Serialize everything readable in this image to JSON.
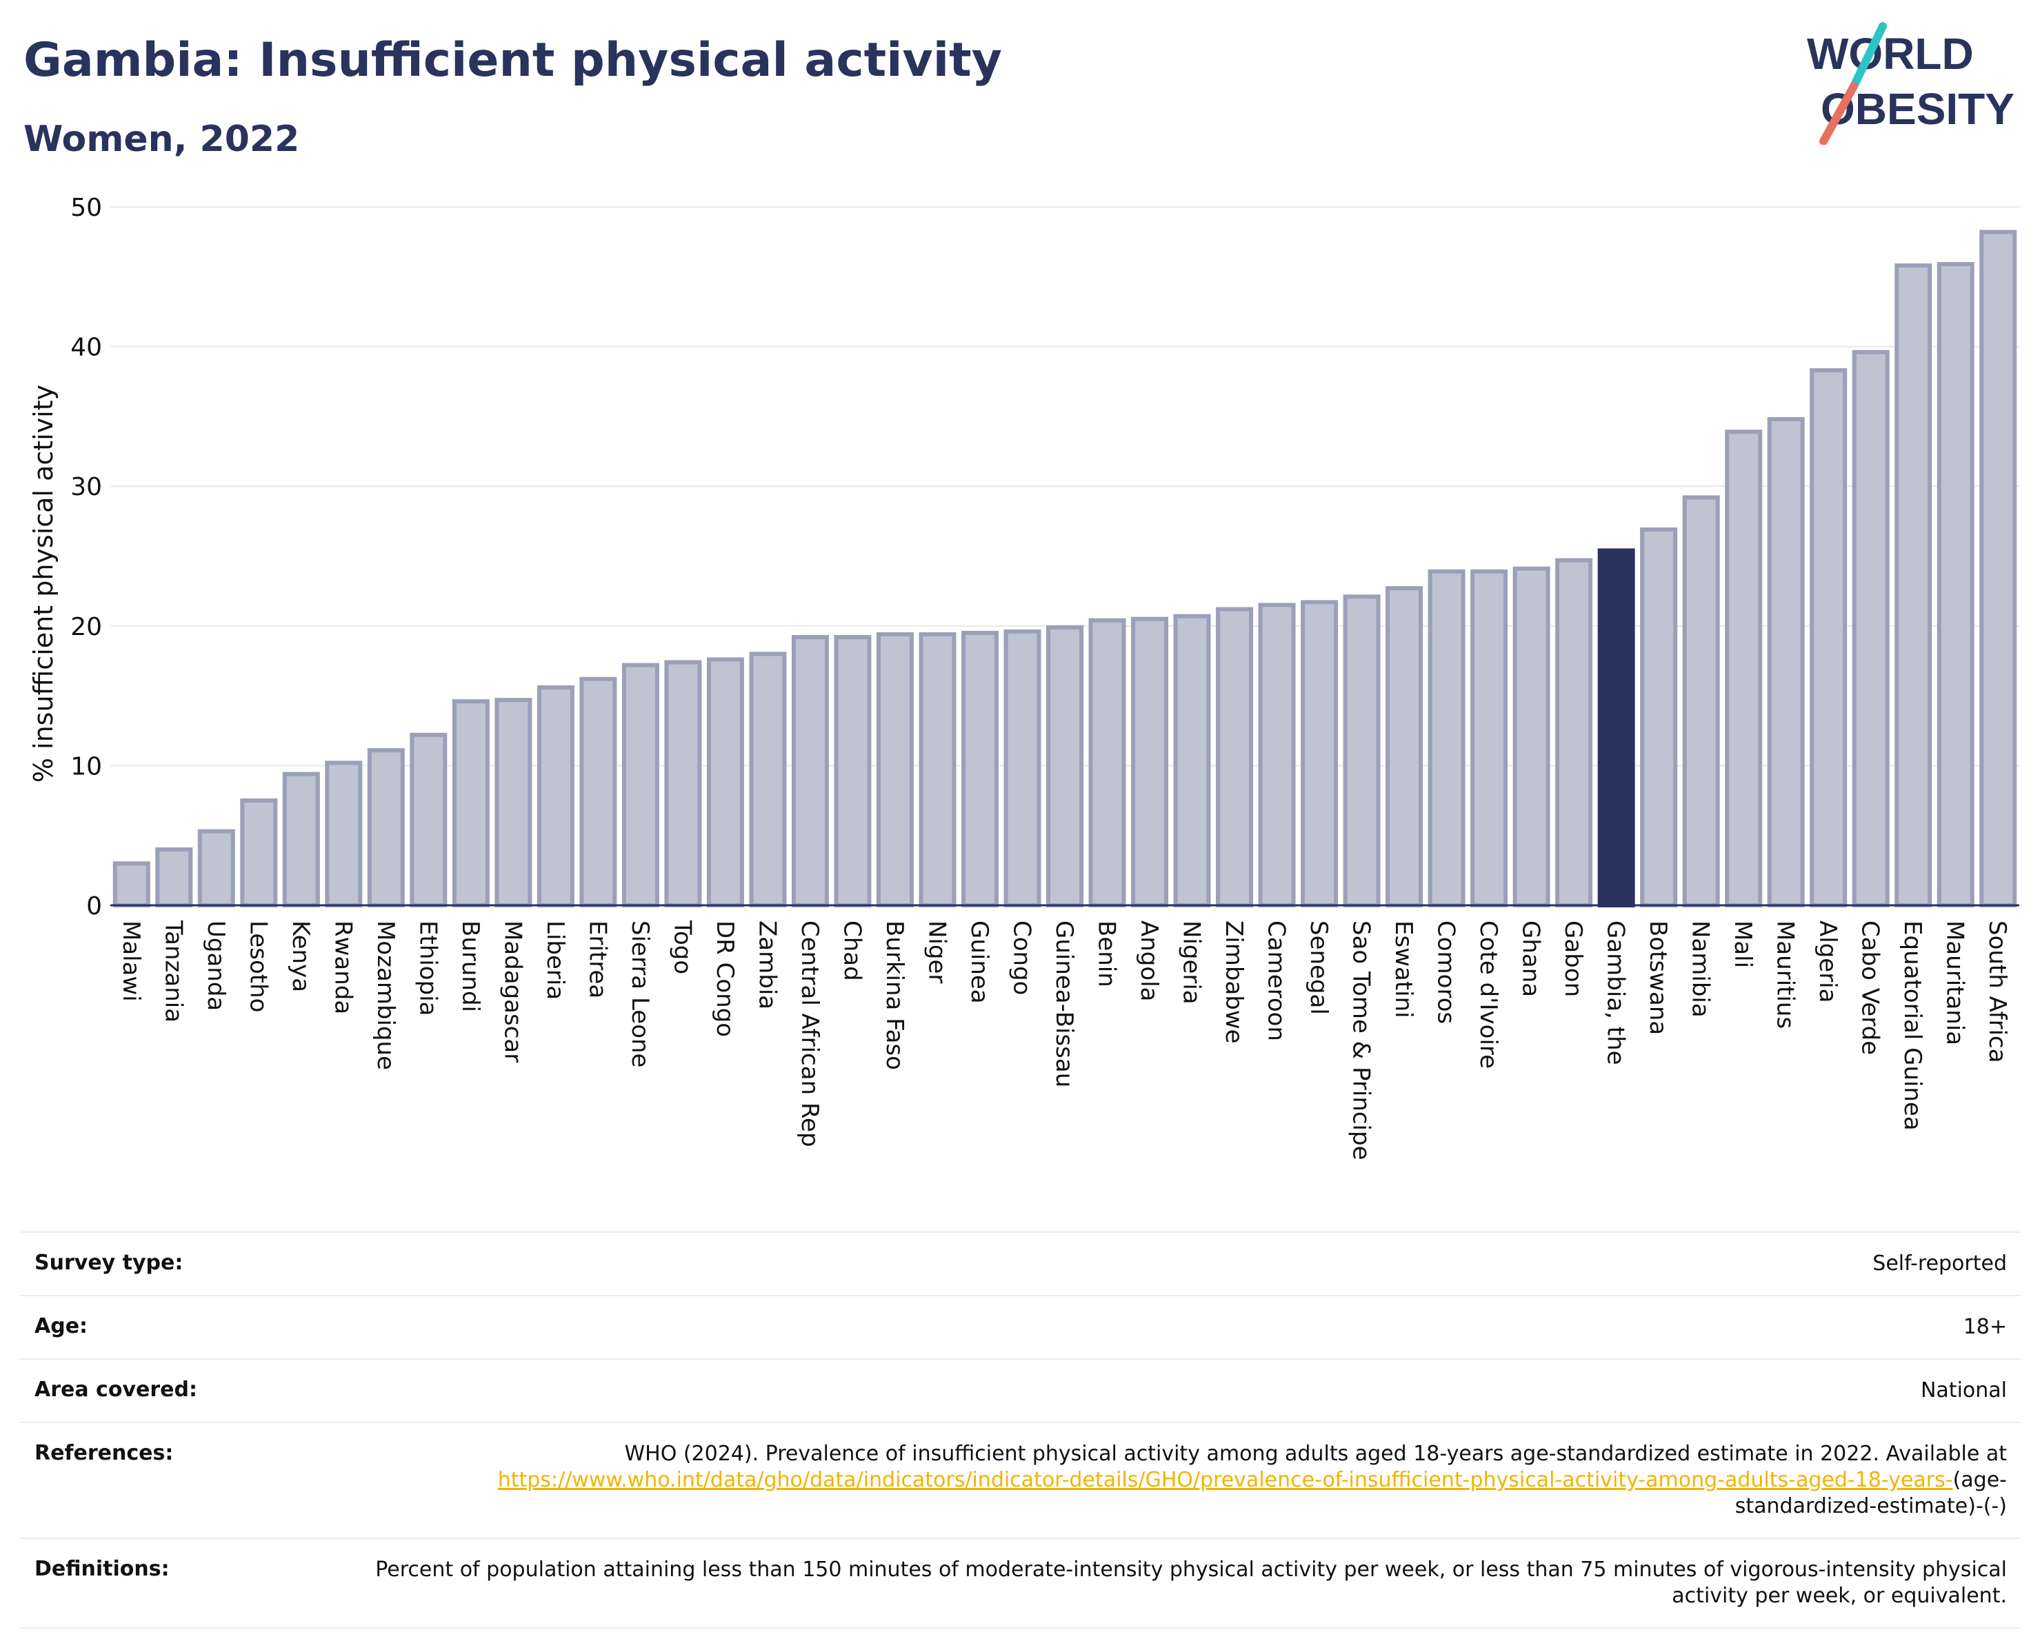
{
  "header": {
    "title": "Gambia: Insufficient physical activity",
    "subtitle": "Women, 2022"
  },
  "logo": {
    "line1": "WORLD",
    "line2": "OBESITY",
    "slash_colors": [
      "#2cc4c4",
      "#e8705f"
    ]
  },
  "chart_data": {
    "type": "bar",
    "ylabel": "% insufficient physical activity",
    "xlabel": "",
    "ylim": [
      0,
      50
    ],
    "yticks": [
      0,
      10,
      20,
      30,
      40,
      50
    ],
    "grid": true,
    "highlight": "Gambia, the",
    "colors": {
      "bar": "#bfc3d2",
      "bar_border": "#9aa0b8",
      "highlight": "#29335c"
    },
    "categories": [
      "Malawi",
      "Tanzania",
      "Uganda",
      "Lesotho",
      "Kenya",
      "Rwanda",
      "Mozambique",
      "Ethiopia",
      "Burundi",
      "Madagascar",
      "Liberia",
      "Eritrea",
      "Sierra Leone",
      "Togo",
      "DR Congo",
      "Zambia",
      "Central African Rep",
      "Chad",
      "Burkina Faso",
      "Niger",
      "Guinea",
      "Congo",
      "Guinea-Bissau",
      "Benin",
      "Angola",
      "Nigeria",
      "Zimbabwe",
      "Cameroon",
      "Senegal",
      "Sao Tome & Principe",
      "Eswatini",
      "Comoros",
      "Cote d'Ivoire",
      "Ghana",
      "Gabon",
      "Gambia, the",
      "Botswana",
      "Namibia",
      "Mali",
      "Mauritius",
      "Algeria",
      "Cabo Verde",
      "Equatorial Guinea",
      "Mauritania",
      "South Africa"
    ],
    "values": [
      3.0,
      4.0,
      5.3,
      7.5,
      9.4,
      10.2,
      11.1,
      12.2,
      14.6,
      14.7,
      15.6,
      16.2,
      17.2,
      17.4,
      17.6,
      18.0,
      19.2,
      19.2,
      19.4,
      19.4,
      19.5,
      19.6,
      19.9,
      20.4,
      20.5,
      20.7,
      21.2,
      21.5,
      21.7,
      22.1,
      22.7,
      23.9,
      23.9,
      24.1,
      24.7,
      25.4,
      26.9,
      29.2,
      33.9,
      34.8,
      38.3,
      39.6,
      45.8,
      45.9,
      48.2
    ]
  },
  "meta": [
    {
      "label": "Survey type:",
      "value": "Self-reported"
    },
    {
      "label": "Age:",
      "value": "18+"
    },
    {
      "label": "Area covered:",
      "value": "National"
    },
    {
      "label": "References:",
      "value": "WHO (2024). Prevalence of insufficient physical activity among adults aged 18-years age-standardized estimate in 2022. Available at",
      "link": "https://www.who.int/data/gho/data/indicators/indicator-details/GHO/prevalence-of-insufficient-physical-activity-among-adults-aged-18-years-",
      "suffix": "(age-standardized-estimate)-(-)"
    },
    {
      "label": "Definitions:",
      "value": "Percent of population attaining less than 150 minutes of moderate-intensity physical activity per week, or less than 75 minutes of vigorous-intensity physical activity per week, or equivalent."
    }
  ]
}
